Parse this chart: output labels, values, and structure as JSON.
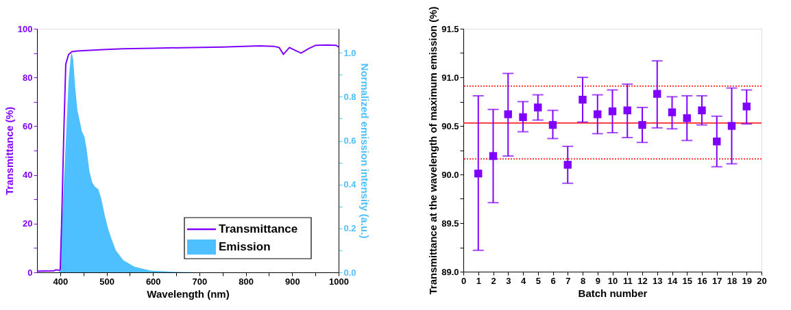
{
  "chart_data": [
    {
      "type": "line",
      "xlabel": "Wavelength (nm)",
      "ylabel": "Transmittance (%)",
      "y2label": "Normalized emission intensity (a.u.)",
      "xlim": [
        350,
        1000
      ],
      "xticks": [
        400,
        {
          "value": 450,
          "label": null
        },
        500,
        {
          "value": 550,
          "label": null
        },
        600,
        {
          "value": 650,
          "label": null
        },
        700,
        {
          "value": 750,
          "label": null
        },
        800,
        {
          "value": 850,
          "label": null
        },
        900,
        {
          "value": 950,
          "label": null
        },
        1000
      ],
      "ylim": [
        0,
        100
      ],
      "yticks": [
        0,
        {
          "value": 10,
          "label": null
        },
        20,
        {
          "value": 30,
          "label": null
        },
        40,
        {
          "value": 50,
          "label": null
        },
        60,
        {
          "value": 70,
          "label": null
        },
        80,
        {
          "value": 90,
          "label": null
        },
        100
      ],
      "y2lim": [
        0,
        1.11
      ],
      "y2ticks": [
        {
          "value": 0,
          "label": "0.0"
        },
        {
          "value": 0.1,
          "label": null
        },
        {
          "value": 0.2,
          "label": "0.2"
        },
        {
          "value": 0.3,
          "label": null
        },
        {
          "value": 0.4,
          "label": "0.4"
        },
        {
          "value": 0.5,
          "label": null
        },
        {
          "value": 0.6,
          "label": "0.6"
        },
        {
          "value": 0.7,
          "label": null
        },
        {
          "value": 0.8,
          "label": "0.8"
        },
        {
          "value": 0.9,
          "label": null
        },
        {
          "value": 1.0,
          "label": "1.0"
        }
      ],
      "legend": "bottom right",
      "grid": false,
      "series": [
        {
          "name": "Transmittance",
          "type": "line",
          "axis": "y",
          "color": "#8000ff",
          "x": [
            350,
            386,
            390,
            394,
            398,
            400,
            403,
            408,
            412,
            418,
            425,
            437,
            450,
            500,
            536,
            600,
            683,
            750,
            830,
            860,
            872,
            881,
            894,
            908,
            919,
            935,
            951,
            975,
            995,
            1000
          ],
          "values": [
            0.5,
            0.6,
            1.0,
            1.0,
            0.8,
            1.2,
            20,
            59,
            85.5,
            89.4,
            90.6,
            90.9,
            91.0,
            91.5,
            91.8,
            92.0,
            92.3,
            92.5,
            93.0,
            92.8,
            92.3,
            89.5,
            92.3,
            91.0,
            90.0,
            91.8,
            93.2,
            93.3,
            93.2,
            92.5
          ]
        },
        {
          "name": "Emission",
          "type": "area",
          "axis": "y2",
          "color": "#4fc0ff",
          "x": [
            350,
            398,
            400,
            403,
            410,
            418,
            423,
            425,
            428,
            432,
            437,
            442,
            447,
            452,
            457,
            463,
            469,
            475,
            482,
            488,
            496,
            503,
            511,
            520,
            536,
            560,
            595,
            650,
            700,
            1000
          ],
          "values": [
            0,
            0,
            0.02,
            0.19,
            0.5,
            0.87,
            0.99,
            1.0,
            0.97,
            0.85,
            0.74,
            0.69,
            0.64,
            0.62,
            0.56,
            0.46,
            0.41,
            0.39,
            0.38,
            0.34,
            0.26,
            0.2,
            0.15,
            0.1,
            0.055,
            0.026,
            0.008,
            0.002,
            0,
            0
          ]
        }
      ]
    },
    {
      "type": "scatter",
      "xlabel": "Batch number",
      "ylabel": "Transmittance at the wavelength of maximum emission (%)",
      "xlim": [
        0,
        20
      ],
      "xticks": [
        0,
        1,
        2,
        3,
        4,
        5,
        6,
        7,
        8,
        9,
        10,
        11,
        12,
        13,
        14,
        15,
        16,
        17,
        18,
        19,
        20
      ],
      "ylim": [
        89,
        91.5
      ],
      "yticks": [
        {
          "value": 89,
          "label": "89.0"
        },
        {
          "value": 89.25,
          "label": null
        },
        {
          "value": 89.5,
          "label": "89.5"
        },
        {
          "value": 89.75,
          "label": null
        },
        {
          "value": 90,
          "label": "90.0"
        },
        {
          "value": 90.25,
          "label": null
        },
        {
          "value": 90.5,
          "label": "90.5"
        },
        {
          "value": 90.75,
          "label": null
        },
        {
          "value": 91,
          "label": "91.0"
        },
        {
          "value": 91.25,
          "label": null
        },
        {
          "value": 91.5,
          "label": "91.5"
        }
      ],
      "grid": false,
      "marker": "square",
      "ref_lines": [
        {
          "axis": "y",
          "value": 90.53,
          "color": "#ff0000",
          "line_style": "solid"
        },
        {
          "axis": "y",
          "value": 90.91,
          "color": "#ff0000",
          "line_style": "dotted"
        },
        {
          "axis": "y",
          "value": 90.16,
          "color": "#ff0000",
          "line_style": "dotted"
        }
      ],
      "series": [
        {
          "color": "#8000ff",
          "x": [
            1,
            2,
            3,
            4,
            5,
            6,
            7,
            8,
            9,
            10,
            11,
            12,
            13,
            14,
            15,
            16,
            17,
            18,
            19
          ],
          "values": [
            90.01,
            90.19,
            90.62,
            90.59,
            90.69,
            90.51,
            90.1,
            90.77,
            90.62,
            90.65,
            90.66,
            90.51,
            90.83,
            90.64,
            90.58,
            90.66,
            90.34,
            90.5,
            90.7
          ],
          "errors": [
            [
              89.22,
              90.81
            ],
            [
              89.71,
              90.67
            ],
            [
              90.19,
              91.04
            ],
            [
              90.44,
              90.75
            ],
            [
              90.56,
              90.82
            ],
            [
              90.37,
              90.66
            ],
            [
              89.91,
              90.29
            ],
            [
              90.54,
              91.0
            ],
            [
              90.42,
              90.82
            ],
            [
              90.43,
              90.87
            ],
            [
              90.38,
              90.93
            ],
            [
              90.33,
              90.69
            ],
            [
              90.48,
              91.17
            ],
            [
              90.47,
              90.8
            ],
            [
              90.35,
              90.81
            ],
            [
              90.51,
              90.81
            ],
            [
              90.08,
              90.6
            ],
            [
              90.11,
              90.89
            ],
            [
              90.52,
              90.87
            ]
          ]
        }
      ]
    }
  ]
}
